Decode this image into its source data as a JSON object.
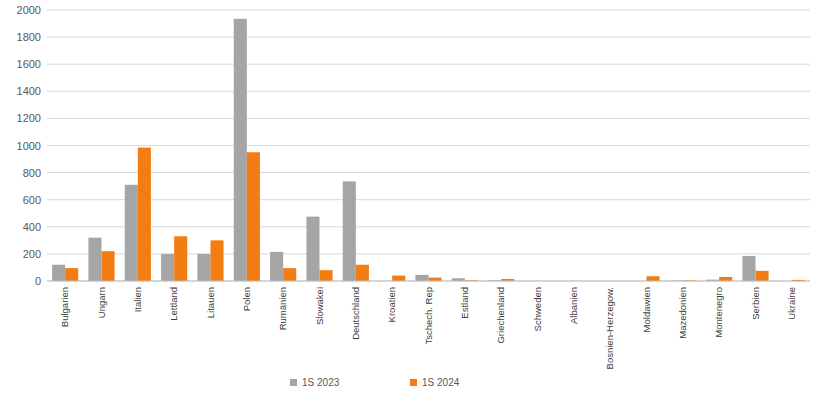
{
  "chart_data": {
    "type": "bar",
    "categories": [
      "Bulgarien",
      "Ungarn",
      "Italien",
      "Lettland",
      "Litauen",
      "Polen",
      "Rumänien",
      "Slowakei",
      "Deutschland",
      "Kroatien",
      "Tschech. Rep",
      "Estland",
      "Griechenland",
      "Schweden",
      "Albanien",
      "Bosnien-Herzegow.",
      "Moldawien",
      "Mazedonien",
      "Montenegro",
      "Serbien",
      "Ukraine"
    ],
    "series": [
      {
        "name": "1S 2023",
        "color": "#a5a5a5",
        "values": [
          120,
          320,
          710,
          200,
          200,
          1935,
          215,
          475,
          735,
          0,
          45,
          20,
          5,
          0,
          0,
          0,
          0,
          3,
          10,
          185,
          0
        ]
      },
      {
        "name": "1S 2024",
        "color": "#f47d13",
        "values": [
          95,
          220,
          985,
          330,
          300,
          950,
          95,
          80,
          120,
          40,
          25,
          5,
          15,
          0,
          0,
          0,
          35,
          5,
          30,
          75,
          8
        ]
      }
    ],
    "ylim": [
      0,
      2000
    ],
    "yticks": [
      0,
      200,
      400,
      600,
      800,
      1000,
      1200,
      1400,
      1600,
      1800,
      2000
    ],
    "grid": true,
    "legend": "bottom"
  }
}
